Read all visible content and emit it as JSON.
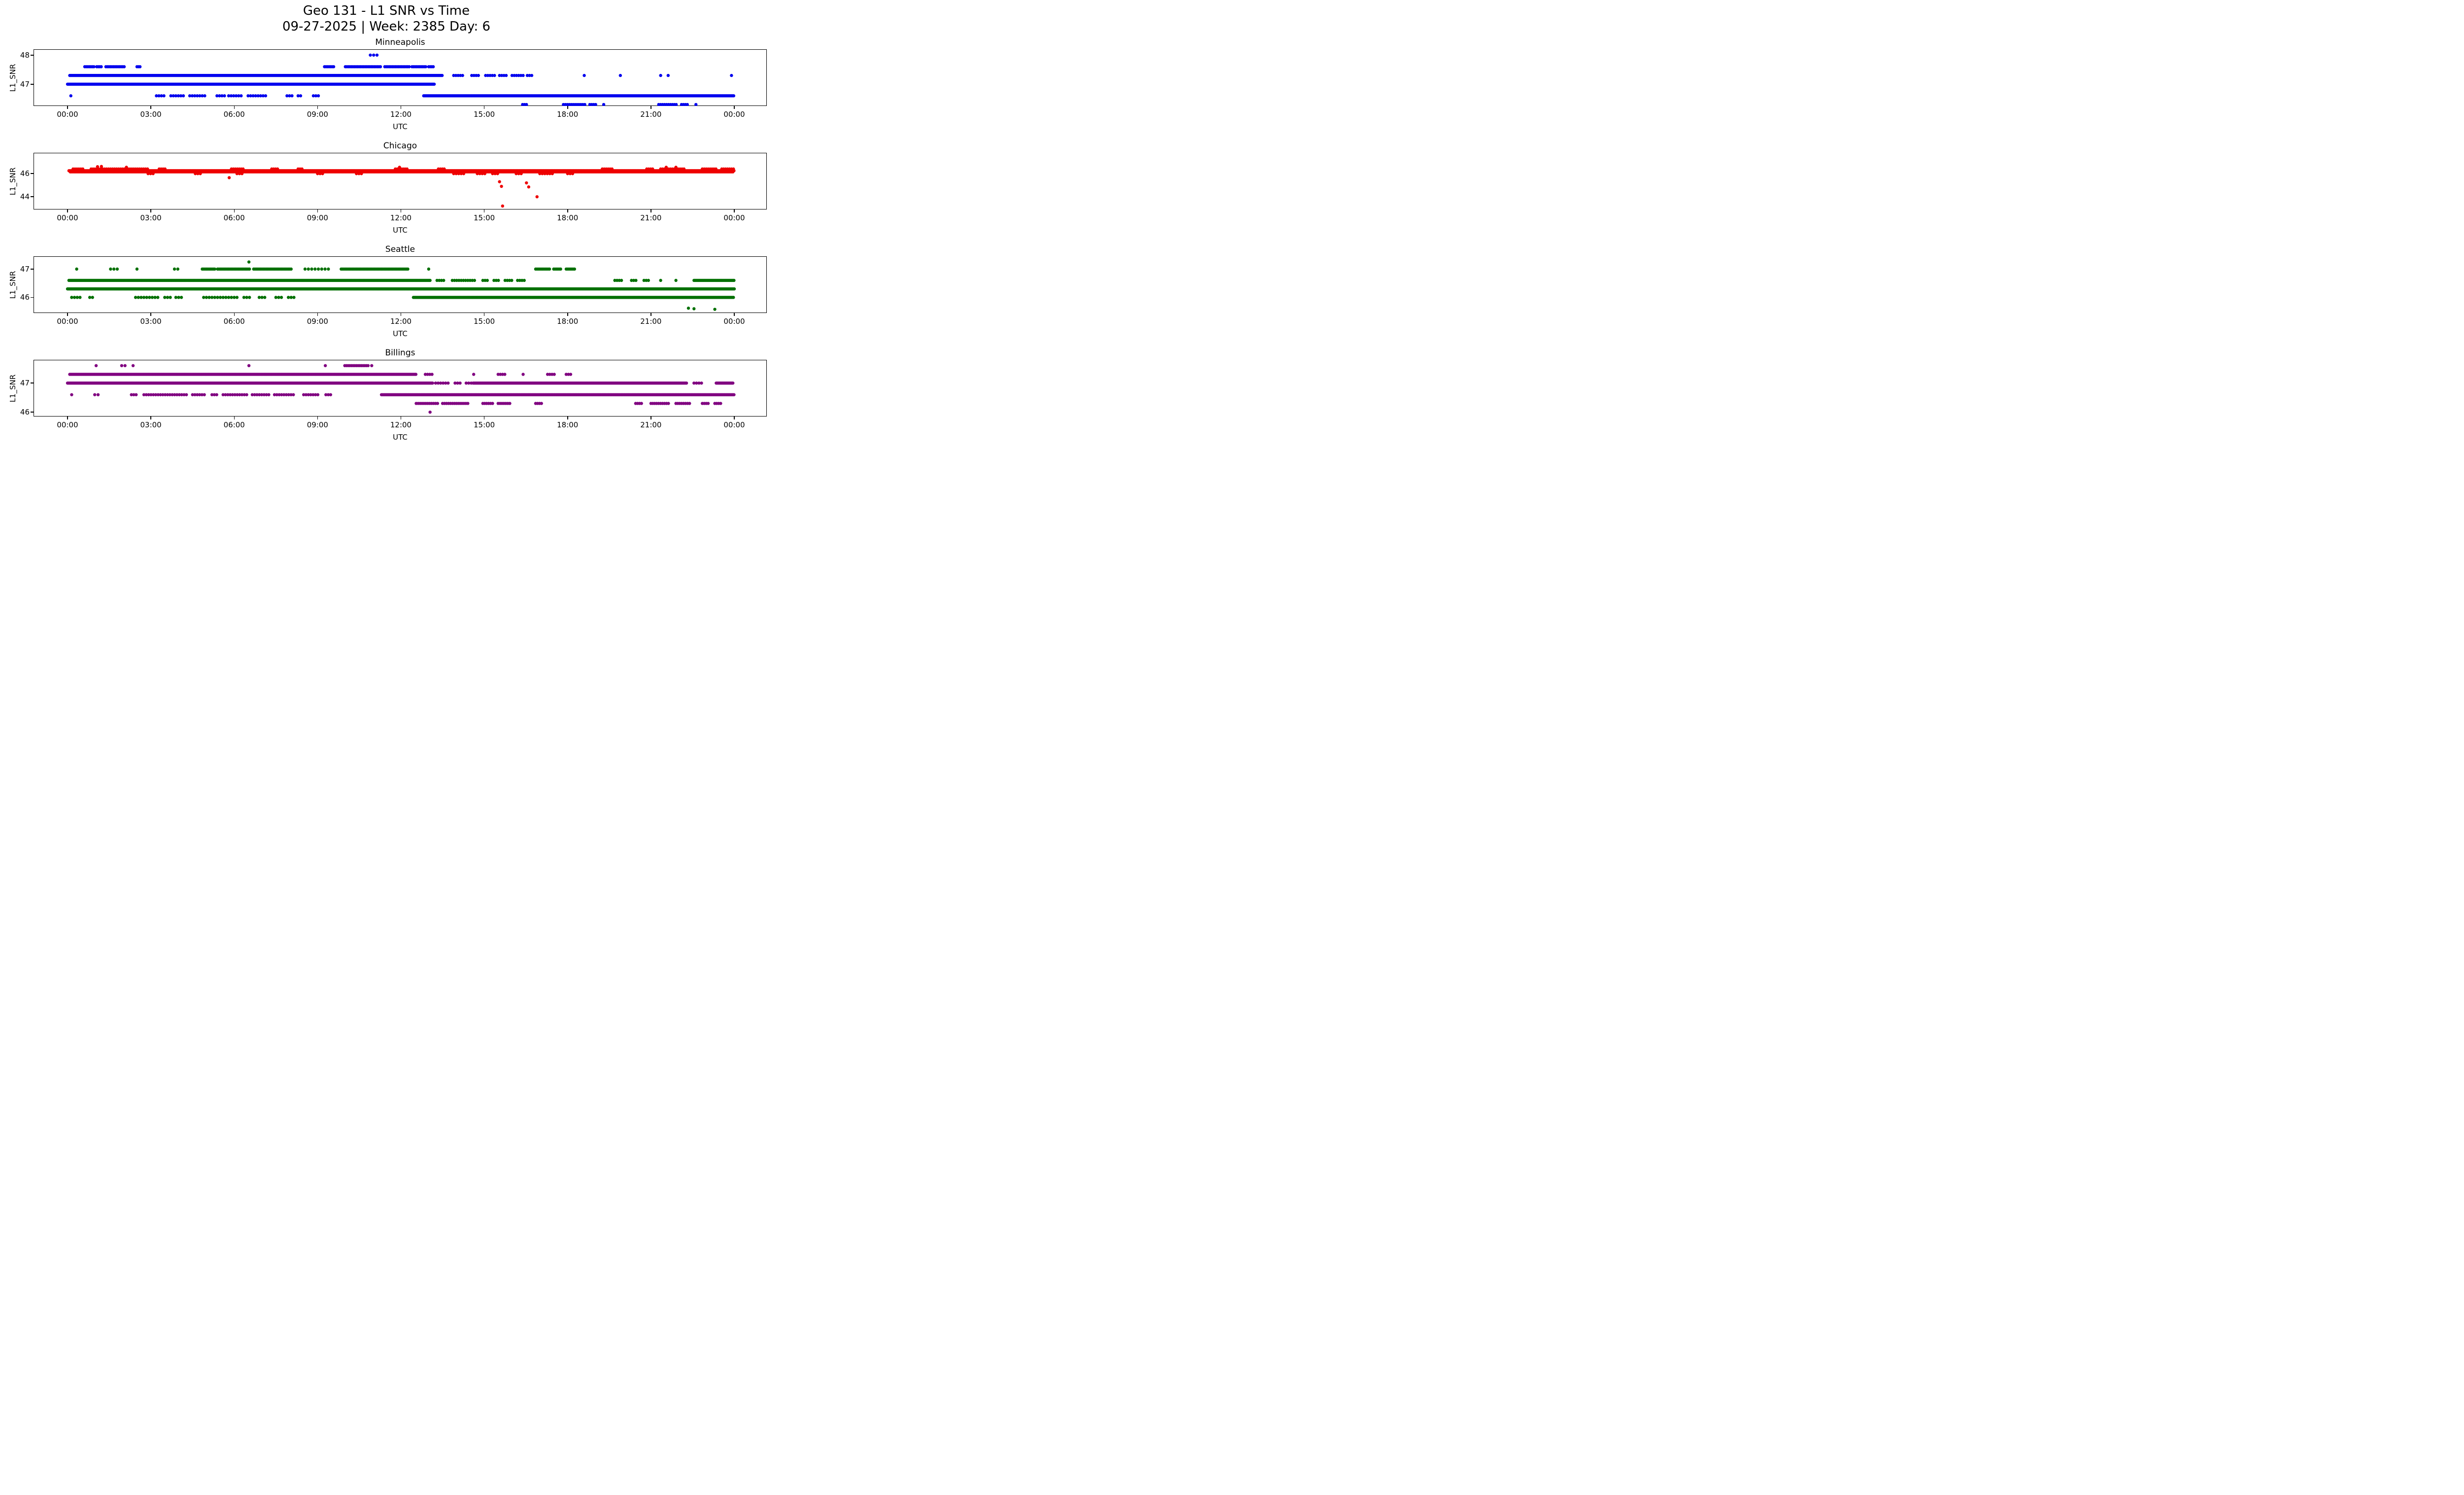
{
  "figure": {
    "title_line1": "Geo 131 - L1 SNR vs Time",
    "title_line2": "09-27-2025 | Week: 2385 Day: 6"
  },
  "chart_data": [
    {
      "type": "scatter",
      "title": "Minneapolis",
      "color": "#0000ee",
      "xlabel": "UTC",
      "ylabel": "L1_SNR",
      "xlim_hours": [
        0,
        24
      ],
      "ylim": [
        46.25,
        48.2
      ],
      "y_ticks": [
        47,
        48
      ],
      "y_tick_labels": [
        "47",
        "48"
      ],
      "x_ticks": {
        "hours": [
          0,
          3,
          6,
          9,
          12,
          15,
          18,
          21,
          24
        ],
        "labels": [
          "00:00",
          "03:00",
          "06:00",
          "09:00",
          "12:00",
          "15:00",
          "18:00",
          "21:00",
          "00:00"
        ]
      },
      "marker_radius": 3.2,
      "bands": [
        {
          "y": 48.0,
          "step": 0.12,
          "segments": [
            [
              10.9,
              11.25
            ]
          ]
        },
        {
          "y": 47.6,
          "step": 0.055,
          "segments": [
            [
              0.62,
              0.98
            ],
            [
              1.05,
              1.22
            ],
            [
              1.38,
              2.08
            ],
            [
              2.5,
              2.66
            ],
            [
              9.25,
              9.62
            ],
            [
              10.0,
              11.3
            ],
            [
              11.42,
              12.3
            ],
            [
              12.4,
              12.92
            ],
            [
              13.0,
              13.2
            ]
          ]
        },
        {
          "y": 47.3,
          "step": 0.035,
          "segments": [
            [
              0.08,
              13.5
            ]
          ]
        },
        {
          "y": 47.3,
          "step": 0.08,
          "segments": [
            [
              13.9,
              14.22
            ],
            [
              14.55,
              14.82
            ],
            [
              15.05,
              15.42
            ],
            [
              15.55,
              15.82
            ],
            [
              16.0,
              16.42
            ],
            [
              16.55,
              16.72
            ]
          ]
        },
        {
          "y": 47.0,
          "step": 0.03,
          "segments": [
            [
              0.0,
              13.2
            ]
          ]
        },
        {
          "y": 46.6,
          "step": 0.03,
          "segments": [
            [
              12.82,
              24.0
            ]
          ]
        },
        {
          "y": 46.6,
          "step": 0.09,
          "segments": [
            [
              3.2,
              3.52
            ],
            [
              3.72,
              4.2
            ],
            [
              4.4,
              5.0
            ],
            [
              5.38,
              5.66
            ],
            [
              5.8,
              6.3
            ],
            [
              6.5,
              7.2
            ],
            [
              7.9,
              8.16
            ],
            [
              8.3,
              8.46
            ],
            [
              8.85,
              9.06
            ]
          ]
        },
        {
          "y": 46.3,
          "step": 0.07,
          "segments": [
            [
              16.38,
              16.56
            ],
            [
              17.85,
              18.66
            ],
            [
              18.8,
              19.06
            ],
            [
              21.28,
              21.96
            ],
            [
              22.1,
              22.36
            ]
          ]
        }
      ],
      "points": [
        [
          0.12,
          46.6
        ],
        [
          18.6,
          47.3
        ],
        [
          19.9,
          47.3
        ],
        [
          21.35,
          47.3
        ],
        [
          21.62,
          47.3
        ],
        [
          23.9,
          47.3
        ],
        [
          19.3,
          46.3
        ],
        [
          22.62,
          46.3
        ]
      ]
    },
    {
      "type": "scatter",
      "title": "Chicago",
      "color": "#ee0000",
      "xlabel": "UTC",
      "ylabel": "L1_SNR",
      "xlim_hours": [
        0,
        24
      ],
      "ylim": [
        42.9,
        47.8
      ],
      "y_ticks": [
        44,
        46
      ],
      "y_tick_labels": [
        "44",
        "46"
      ],
      "x_ticks": {
        "hours": [
          0,
          3,
          6,
          9,
          12,
          15,
          18,
          21,
          24
        ],
        "labels": [
          "00:00",
          "03:00",
          "06:00",
          "09:00",
          "12:00",
          "15:00",
          "18:00",
          "21:00",
          "00:00"
        ]
      },
      "marker_radius": 3.2,
      "bands": [
        {
          "y": 46.25,
          "step": 0.03,
          "segments": [
            [
              0.05,
              24.0
            ]
          ]
        },
        {
          "y": 46.15,
          "step": 0.05,
          "segments": [
            [
              0.1,
              23.95
            ]
          ]
        },
        {
          "y": 46.4,
          "step": 0.07,
          "segments": [
            [
              0.2,
              0.6
            ],
            [
              0.85,
              2.9
            ],
            [
              3.3,
              3.55
            ],
            [
              5.9,
              6.35
            ],
            [
              7.35,
              7.6
            ],
            [
              8.3,
              8.5
            ],
            [
              11.8,
              12.25
            ],
            [
              13.35,
              13.6
            ],
            [
              19.25,
              19.6
            ],
            [
              20.85,
              21.1
            ],
            [
              21.35,
              22.25
            ],
            [
              22.85,
              23.4
            ],
            [
              23.55,
              24.0
            ]
          ]
        },
        {
          "y": 46.0,
          "step": 0.09,
          "segments": [
            [
              2.9,
              3.15
            ],
            [
              4.6,
              4.85
            ],
            [
              6.1,
              6.3
            ],
            [
              9.0,
              9.25
            ],
            [
              10.4,
              10.6
            ],
            [
              13.9,
              14.3
            ],
            [
              14.75,
              15.05
            ],
            [
              15.3,
              15.5
            ],
            [
              16.15,
              16.4
            ],
            [
              17.0,
              17.45
            ],
            [
              18.0,
              18.25
            ]
          ]
        }
      ],
      "points": [
        [
          1.08,
          46.6
        ],
        [
          1.22,
          46.62
        ],
        [
          2.12,
          46.55
        ],
        [
          11.95,
          46.55
        ],
        [
          21.55,
          46.55
        ],
        [
          21.9,
          46.55
        ],
        [
          5.82,
          45.65
        ],
        [
          15.55,
          45.3
        ],
        [
          15.62,
          44.9
        ],
        [
          15.66,
          43.2
        ],
        [
          16.52,
          45.2
        ],
        [
          16.6,
          44.85
        ],
        [
          16.9,
          44.0
        ]
      ]
    },
    {
      "type": "scatter",
      "title": "Seattle",
      "color": "#007000",
      "xlabel": "UTC",
      "ylabel": "L1_SNR",
      "xlim_hours": [
        0,
        24
      ],
      "ylim": [
        45.45,
        47.45
      ],
      "y_ticks": [
        46,
        47
      ],
      "y_tick_labels": [
        "46",
        "47"
      ],
      "x_ticks": {
        "hours": [
          0,
          3,
          6,
          9,
          12,
          15,
          18,
          21,
          24
        ],
        "labels": [
          "00:00",
          "03:00",
          "06:00",
          "09:00",
          "12:00",
          "15:00",
          "18:00",
          "21:00",
          "00:00"
        ]
      },
      "marker_radius": 3.2,
      "bands": [
        {
          "y": 47.0,
          "step": 0.05,
          "segments": [
            [
              4.85,
              5.3
            ],
            [
              5.4,
              6.55
            ],
            [
              6.7,
              8.05
            ],
            [
              9.85,
              11.25
            ],
            [
              11.3,
              12.25
            ],
            [
              16.85,
              17.35
            ],
            [
              17.5,
              17.75
            ],
            [
              17.95,
              18.25
            ]
          ]
        },
        {
          "y": 47.0,
          "step": 0.12,
          "segments": [
            [
              1.55,
              1.8
            ],
            [
              3.85,
              4.08
            ],
            [
              8.55,
              9.5
            ]
          ]
        },
        {
          "y": 46.6,
          "step": 0.04,
          "segments": [
            [
              0.05,
              13.05
            ],
            [
              22.55,
              24.0
            ]
          ]
        },
        {
          "y": 46.6,
          "step": 0.08,
          "segments": [
            [
              13.3,
              13.58
            ],
            [
              13.85,
              14.65
            ],
            [
              14.95,
              15.15
            ],
            [
              15.35,
              15.58
            ],
            [
              15.75,
              16.0
            ],
            [
              16.2,
              16.45
            ],
            [
              19.7,
              19.95
            ],
            [
              20.3,
              20.48
            ],
            [
              20.75,
              20.95
            ]
          ]
        },
        {
          "y": 46.3,
          "step": 0.03,
          "segments": [
            [
              0.0,
              24.0
            ]
          ]
        },
        {
          "y": 46.0,
          "step": 0.04,
          "segments": [
            [
              12.45,
              24.0
            ]
          ]
        },
        {
          "y": 46.0,
          "step": 0.1,
          "segments": [
            [
              0.15,
              0.5
            ],
            [
              0.8,
              0.95
            ],
            [
              2.45,
              3.25
            ],
            [
              3.5,
              3.7
            ],
            [
              3.9,
              4.15
            ],
            [
              4.9,
              5.5
            ],
            [
              5.6,
              6.1
            ],
            [
              6.35,
              6.55
            ],
            [
              6.9,
              7.1
            ],
            [
              7.5,
              7.75
            ],
            [
              7.95,
              8.2
            ]
          ]
        }
      ],
      "points": [
        [
          0.33,
          47.0
        ],
        [
          2.5,
          47.0
        ],
        [
          13.0,
          47.0
        ],
        [
          6.53,
          47.25
        ],
        [
          21.35,
          46.6
        ],
        [
          21.9,
          46.6
        ],
        [
          22.35,
          45.62
        ],
        [
          22.55,
          45.6
        ],
        [
          23.3,
          45.58
        ]
      ]
    },
    {
      "type": "scatter",
      "title": "Billings",
      "color": "#800080",
      "xlabel": "UTC",
      "ylabel": "L1_SNR",
      "xlim_hours": [
        0,
        24
      ],
      "ylim": [
        45.85,
        47.8
      ],
      "y_ticks": [
        46,
        47
      ],
      "y_tick_labels": [
        "46",
        "47"
      ],
      "x_ticks": {
        "hours": [
          0,
          3,
          6,
          9,
          12,
          15,
          18,
          21,
          24
        ],
        "labels": [
          "00:00",
          "03:00",
          "06:00",
          "09:00",
          "12:00",
          "15:00",
          "18:00",
          "21:00",
          "00:00"
        ]
      },
      "marker_radius": 3.2,
      "bands": [
        {
          "y": 47.6,
          "step": 0.06,
          "segments": [
            [
              9.98,
              10.82
            ]
          ]
        },
        {
          "y": 47.3,
          "step": 0.035,
          "segments": [
            [
              0.08,
              12.55
            ]
          ]
        },
        {
          "y": 47.3,
          "step": 0.08,
          "segments": [
            [
              12.88,
              13.18
            ],
            [
              15.5,
              15.78
            ],
            [
              17.28,
              17.58
            ],
            [
              17.95,
              18.18
            ]
          ]
        },
        {
          "y": 47.0,
          "step": 0.03,
          "segments": [
            [
              0.0,
              13.15
            ],
            [
              14.6,
              22.28
            ],
            [
              23.35,
              23.95
            ]
          ]
        },
        {
          "y": 47.0,
          "step": 0.09,
          "segments": [
            [
              13.25,
              13.78
            ],
            [
              13.95,
              14.18
            ],
            [
              14.35,
              14.55
            ],
            [
              22.55,
              22.85
            ]
          ]
        },
        {
          "y": 46.6,
          "step": 0.03,
          "segments": [
            [
              11.3,
              24.0
            ]
          ]
        },
        {
          "y": 46.6,
          "step": 0.085,
          "segments": [
            [
              2.3,
              2.52
            ],
            [
              2.75,
              4.3
            ],
            [
              4.5,
              5.0
            ],
            [
              5.2,
              5.45
            ],
            [
              5.6,
              6.5
            ],
            [
              6.65,
              7.3
            ],
            [
              7.45,
              8.2
            ],
            [
              8.5,
              9.02
            ],
            [
              9.3,
              9.48
            ]
          ]
        },
        {
          "y": 46.3,
          "step": 0.07,
          "segments": [
            [
              12.55,
              13.32
            ],
            [
              13.5,
              14.45
            ],
            [
              14.95,
              15.3
            ],
            [
              15.5,
              15.95
            ],
            [
              16.85,
              17.12
            ],
            [
              20.45,
              20.68
            ],
            [
              21.0,
              21.65
            ],
            [
              21.9,
              22.4
            ],
            [
              22.85,
              23.12
            ],
            [
              23.3,
              23.52
            ]
          ]
        }
      ],
      "points": [
        [
          1.03,
          47.6
        ],
        [
          1.95,
          47.6
        ],
        [
          2.07,
          47.6
        ],
        [
          2.36,
          47.6
        ],
        [
          6.53,
          47.6
        ],
        [
          9.28,
          47.6
        ],
        [
          10.95,
          47.6
        ],
        [
          0.15,
          46.6
        ],
        [
          0.98,
          46.6
        ],
        [
          1.1,
          46.6
        ],
        [
          14.62,
          47.3
        ],
        [
          16.4,
          47.3
        ],
        [
          13.05,
          46.0
        ]
      ]
    }
  ]
}
